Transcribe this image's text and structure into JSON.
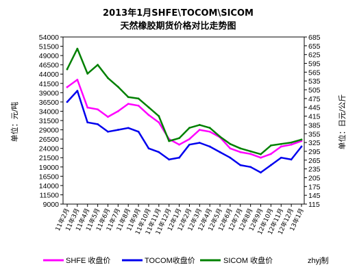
{
  "chart_data": {
    "type": "line",
    "title": "2013年1月SHFE\\TOCOM\\SICOM",
    "subtitle": "天然橡胶期货价格对比走势图",
    "ylabel_left": "单位：元/吨",
    "ylabel_right": "单位：日元/公斤",
    "watermark": "zhyj制",
    "y_left": {
      "min": 9000,
      "max": 54000,
      "ticks": [
        "54000",
        "51500",
        "49000",
        "46500",
        "44000",
        "41500",
        "39000",
        "36500",
        "34000",
        "31500",
        "29000",
        "26500",
        "24000",
        "21500",
        "19000",
        "16500",
        "14000",
        "11500",
        "9000"
      ]
    },
    "y_right": {
      "min": 115,
      "max": 685,
      "ticks": [
        "685",
        "655",
        "625",
        "595",
        "565",
        "535",
        "505",
        "475",
        "445",
        "415",
        "385",
        "355",
        "325",
        "295",
        "265",
        "235",
        "205",
        "175",
        "145",
        "115"
      ]
    },
    "categories": [
      "11年2月",
      "11年3月",
      "11年4月",
      "11年5月",
      "11年6月",
      "11年7月",
      "11年8月",
      "11年9月",
      "11年10月",
      "11年11月",
      "11年12月",
      "12年1月",
      "12年2月",
      "12年3月",
      "12年4月",
      "12年5月",
      "12年6月",
      "12年7月",
      "12年8月",
      "12年9月",
      "12年10月",
      "12年11月",
      "12年12月",
      "13年1月"
    ],
    "series": [
      {
        "name": "SHFE 收盘价",
        "axis": "left",
        "color": "#ff00ff",
        "values": [
          40500,
          42500,
          35000,
          34500,
          32500,
          34000,
          36000,
          35500,
          33000,
          31000,
          26500,
          25000,
          26500,
          29000,
          28500,
          27000,
          24000,
          23000,
          22500,
          21500,
          22500,
          24500,
          25000,
          26000
        ]
      },
      {
        "name": "TOCOM收盘价",
        "axis": "left",
        "color": "#0000ee",
        "values": [
          36500,
          39500,
          31000,
          30500,
          28500,
          29000,
          29500,
          28500,
          24000,
          23000,
          21000,
          21500,
          25000,
          25500,
          24500,
          23000,
          21500,
          19500,
          19000,
          17500,
          19500,
          21500,
          21000,
          24500
        ]
      },
      {
        "name": "SICOM 收盘价",
        "axis": "right",
        "color": "#008000",
        "values": [
          575,
          645,
          560,
          590,
          545,
          515,
          480,
          475,
          445,
          415,
          330,
          340,
          375,
          385,
          375,
          345,
          320,
          305,
          295,
          285,
          315,
          320,
          325,
          335
        ]
      }
    ]
  }
}
